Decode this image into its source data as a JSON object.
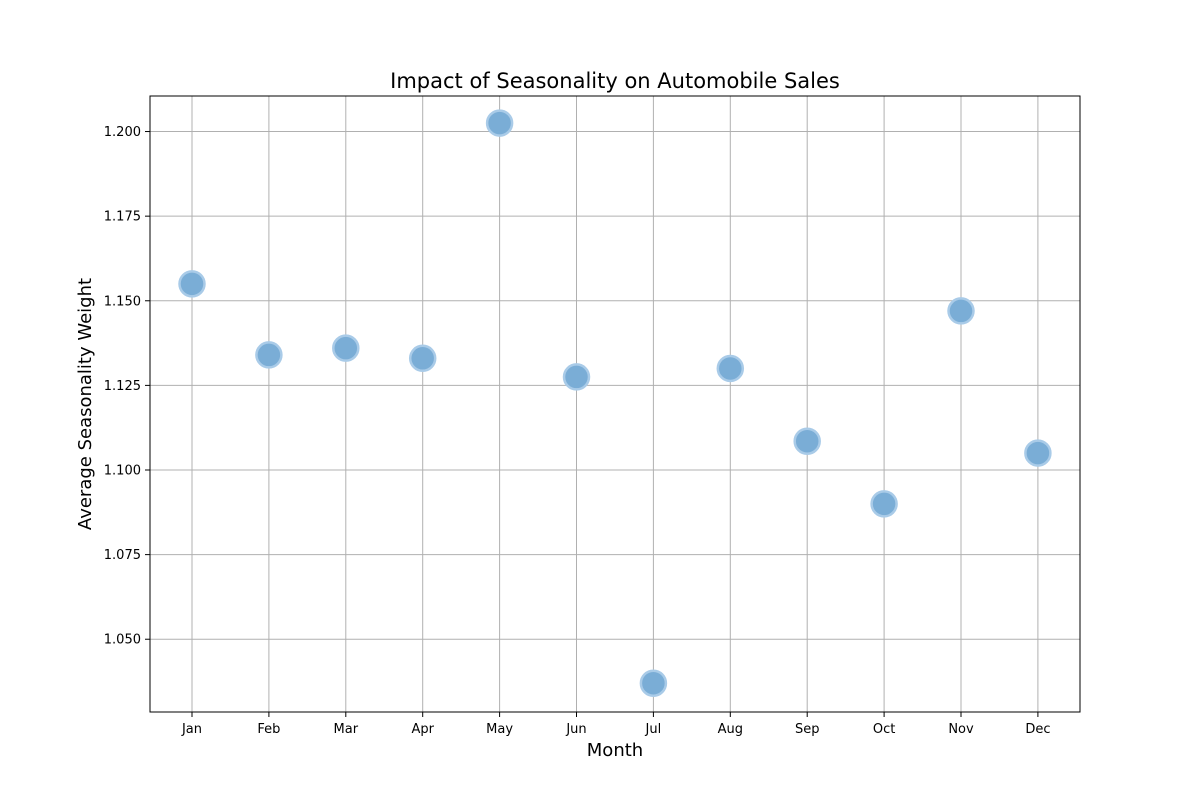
{
  "chart_data": {
    "type": "scatter",
    "title": "Impact of Seasonality on Automobile Sales",
    "xlabel": "Month",
    "ylabel": "Average Seasonality Weight",
    "categories": [
      "Jan",
      "Feb",
      "Mar",
      "Apr",
      "May",
      "Jun",
      "Jul",
      "Aug",
      "Sep",
      "Oct",
      "Nov",
      "Dec"
    ],
    "values": [
      1.155,
      1.134,
      1.136,
      1.133,
      1.2025,
      1.1275,
      1.037,
      1.13,
      1.1085,
      1.09,
      1.147,
      1.105
    ],
    "ylim": [
      1.0285,
      1.2105
    ],
    "yticks": [
      1.05,
      1.075,
      1.1,
      1.125,
      1.15,
      1.175,
      1.2
    ],
    "ytick_labels": [
      "1.050",
      "1.075",
      "1.100",
      "1.125",
      "1.150",
      "1.175",
      "1.200"
    ],
    "grid": true,
    "marker_color": "#7aadd6",
    "marker_edge_color": "#a9cbe8",
    "grid_color": "#b0b0b0"
  }
}
